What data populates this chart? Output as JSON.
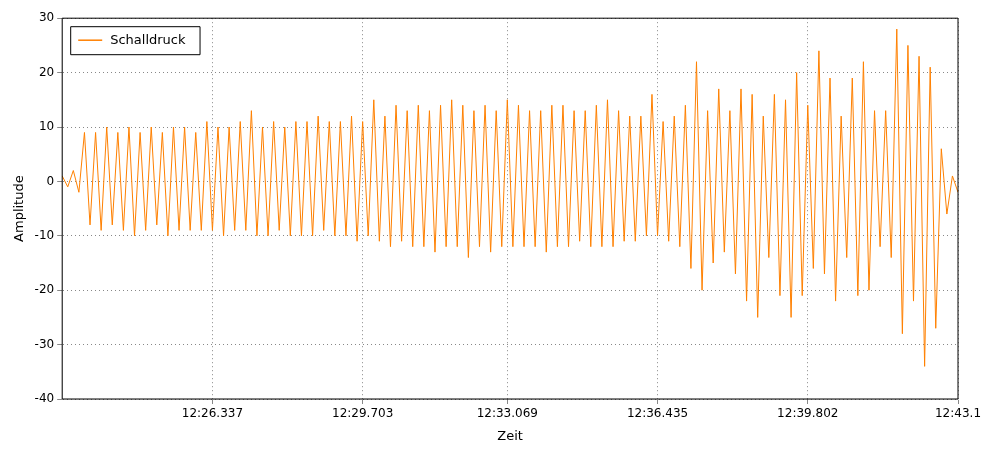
{
  "chart_data": {
    "type": "line",
    "xlabel": "Zeit",
    "ylabel": "Amplitude",
    "categories": [
      null,
      null,
      null,
      null,
      null,
      null,
      null,
      null,
      null,
      null,
      null,
      null,
      null,
      null,
      null,
      null,
      null,
      null,
      null,
      null,
      null,
      null,
      null,
      null,
      null,
      null,
      null,
      "12:26.337",
      null,
      null,
      null,
      null,
      null,
      null,
      null,
      null,
      null,
      null,
      null,
      null,
      null,
      null,
      null,
      null,
      null,
      null,
      null,
      null,
      null,
      null,
      null,
      null,
      null,
      null,
      "12:29.703",
      null,
      null,
      null,
      null,
      null,
      null,
      null,
      null,
      null,
      null,
      null,
      null,
      null,
      null,
      null,
      null,
      null,
      null,
      null,
      null,
      null,
      null,
      null,
      null,
      null,
      "12:33.069",
      null,
      null,
      null,
      null,
      null,
      null,
      null,
      null,
      null,
      null,
      null,
      null,
      null,
      null,
      null,
      null,
      null,
      null,
      null,
      null,
      null,
      null,
      null,
      null,
      null,
      null,
      "12:36.435",
      null,
      null,
      null,
      null,
      null,
      null,
      null,
      null,
      null,
      null,
      null,
      null,
      null,
      null,
      null,
      null,
      null,
      null,
      null,
      null,
      null,
      null,
      null,
      null,
      null,
      null,
      "12:39.802",
      null,
      null,
      null,
      null,
      null,
      null,
      null,
      null,
      null,
      null,
      null,
      null,
      null,
      null,
      null,
      null,
      null,
      null,
      null,
      null,
      null,
      null,
      null,
      null,
      null,
      null,
      "12:43.1"
    ],
    "ylim": [
      -40,
      30
    ],
    "yticks": [
      -40,
      -30,
      -20,
      -10,
      0,
      10,
      20,
      30
    ],
    "grid": true,
    "legend": "top left",
    "marker": "none",
    "line_style": "solid",
    "series": [
      {
        "name": "Schalldruck",
        "color": "#ff8000",
        "values": [
          1,
          -1,
          2,
          -2,
          9,
          -8,
          9,
          -9,
          10,
          -8,
          9,
          -9,
          10,
          -10,
          9,
          -9,
          10,
          -8,
          9,
          -10,
          10,
          -9,
          10,
          -9,
          9,
          -9,
          11,
          -9,
          10,
          -10,
          10,
          -9,
          11,
          -9,
          13,
          -10,
          10,
          -10,
          11,
          -9,
          10,
          -10,
          11,
          -10,
          11,
          -10,
          12,
          -9,
          11,
          -10,
          11,
          -10,
          12,
          -11,
          11,
          -10,
          15,
          -11,
          12,
          -12,
          14,
          -11,
          13,
          -12,
          14,
          -12,
          13,
          -13,
          14,
          -12,
          15,
          -12,
          14,
          -14,
          13,
          -12,
          14,
          -13,
          13,
          -12,
          15,
          -12,
          14,
          -12,
          13,
          -12,
          13,
          -13,
          14,
          -12,
          14,
          -12,
          13,
          -11,
          13,
          -12,
          14,
          -12,
          15,
          -12,
          13,
          -11,
          12,
          -11,
          12,
          -10,
          16,
          -10,
          11,
          -11,
          12,
          -12,
          14,
          -16,
          22,
          -20,
          13,
          -15,
          17,
          -13,
          13,
          -17,
          17,
          -22,
          16,
          -25,
          12,
          -14,
          16,
          -21,
          15,
          -25,
          20,
          -21,
          14,
          -16,
          24,
          -17,
          19,
          -22,
          12,
          -14,
          19,
          -21,
          22,
          -20,
          13,
          -12,
          13,
          -14,
          28,
          -28,
          25,
          -22,
          23,
          -34,
          21,
          -27,
          6,
          -6,
          1,
          -2
        ]
      }
    ]
  }
}
